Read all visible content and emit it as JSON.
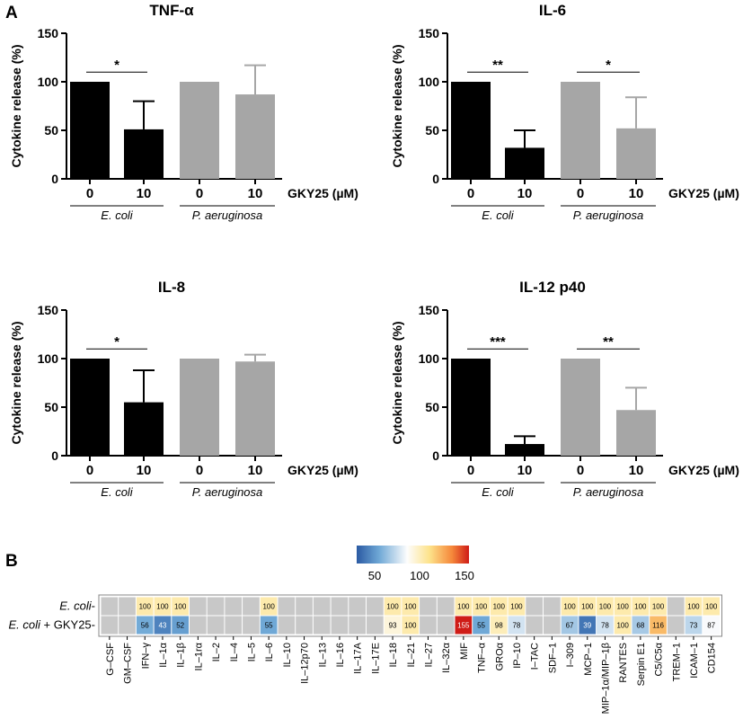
{
  "panels": {
    "A": "A",
    "B": "B"
  },
  "chart_data": [
    {
      "type": "bar",
      "title": "TNF-α",
      "ylabel": "Cytokine release (%)",
      "ylim": [
        0,
        150
      ],
      "yticks": [
        0,
        50,
        100,
        150
      ],
      "categories": [
        "0",
        "10",
        "0",
        "10"
      ],
      "groups": [
        "E. coli",
        "P. aeruginosa"
      ],
      "x_unit_label": "GKY25 (µM)",
      "values": [
        100,
        51,
        100,
        87
      ],
      "errors": [
        0,
        29,
        0,
        30
      ],
      "colors": [
        "#000000",
        "#000000",
        "#a6a6a6",
        "#a6a6a6"
      ],
      "significance": [
        {
          "from": 0,
          "to": 1,
          "label": "*"
        }
      ]
    },
    {
      "type": "bar",
      "title": "IL-6",
      "ylabel": "Cytokine release (%)",
      "ylim": [
        0,
        150
      ],
      "yticks": [
        0,
        50,
        100,
        150
      ],
      "categories": [
        "0",
        "10",
        "0",
        "10"
      ],
      "groups": [
        "E. coli",
        "P. aeruginosa"
      ],
      "x_unit_label": "GKY25 (µM)",
      "values": [
        100,
        32,
        100,
        52
      ],
      "errors": [
        0,
        18,
        0,
        32
      ],
      "colors": [
        "#000000",
        "#000000",
        "#a6a6a6",
        "#a6a6a6"
      ],
      "significance": [
        {
          "from": 0,
          "to": 1,
          "label": "**"
        },
        {
          "from": 2,
          "to": 3,
          "label": "*"
        }
      ]
    },
    {
      "type": "bar",
      "title": "IL-8",
      "ylabel": "Cytokine release (%)",
      "ylim": [
        0,
        150
      ],
      "yticks": [
        0,
        50,
        100,
        150
      ],
      "categories": [
        "0",
        "10",
        "0",
        "10"
      ],
      "groups": [
        "E. coli",
        "P. aeruginosa"
      ],
      "x_unit_label": "GKY25 (µM)",
      "values": [
        100,
        55,
        100,
        97
      ],
      "errors": [
        0,
        33,
        0,
        7
      ],
      "colors": [
        "#000000",
        "#000000",
        "#a6a6a6",
        "#a6a6a6"
      ],
      "significance": [
        {
          "from": 0,
          "to": 1,
          "label": "*"
        }
      ]
    },
    {
      "type": "bar",
      "title": "IL-12 p40",
      "ylabel": "Cytokine release (%)",
      "ylim": [
        0,
        150
      ],
      "yticks": [
        0,
        50,
        100,
        150
      ],
      "categories": [
        "0",
        "10",
        "0",
        "10"
      ],
      "groups": [
        "E. coli",
        "P. aeruginosa"
      ],
      "x_unit_label": "GKY25 (µM)",
      "values": [
        100,
        12,
        100,
        47
      ],
      "errors": [
        0,
        8,
        0,
        23
      ],
      "colors": [
        "#000000",
        "#000000",
        "#a6a6a6",
        "#a6a6a6"
      ],
      "significance": [
        {
          "from": 0,
          "to": 1,
          "label": "***"
        },
        {
          "from": 2,
          "to": 3,
          "label": "**"
        }
      ]
    },
    {
      "type": "heatmap",
      "colorbar": {
        "ticks": [
          50,
          100,
          150
        ],
        "range": [
          30,
          155
        ]
      },
      "rows": [
        {
          "label_italic": "E. coli",
          "label_suffix": ""
        },
        {
          "label_italic": "E. coli",
          "label_suffix": " + GKY25"
        }
      ],
      "columns": [
        "G–CSF",
        "GM–CSF",
        "IFN–γ",
        "IL–1α",
        "IL–1β",
        "IL–1rα",
        "IL–2",
        "IL–4",
        "IL–5",
        "IL–6",
        "IL–10",
        "IL–12p70",
        "IL–13",
        "IL–16",
        "IL–17A",
        "IL–17E",
        "IL–18",
        "IL–21",
        "IL–27",
        "IL–32α",
        "MIF",
        "TNF–α",
        "GROα",
        "IP–10",
        "I–TAC",
        "SDF–1",
        "I–309",
        "MCP–1",
        "MIP–1α/MIP–1β",
        "RANTES",
        "Serpin E1",
        "C5/C5α",
        "TREM–1",
        "ICAM–1",
        "CD154"
      ],
      "values": [
        [
          null,
          null,
          100,
          100,
          100,
          null,
          null,
          null,
          null,
          100,
          null,
          null,
          null,
          null,
          null,
          null,
          100,
          100,
          null,
          null,
          100,
          100,
          100,
          100,
          null,
          null,
          100,
          100,
          100,
          100,
          100,
          100,
          null,
          100,
          100
        ],
        [
          null,
          null,
          56,
          43,
          52,
          null,
          null,
          null,
          null,
          55,
          null,
          null,
          null,
          null,
          null,
          null,
          93,
          100,
          null,
          null,
          155,
          55,
          98,
          78,
          null,
          null,
          67,
          39,
          78,
          100,
          68,
          116,
          null,
          73,
          87
        ]
      ]
    }
  ]
}
